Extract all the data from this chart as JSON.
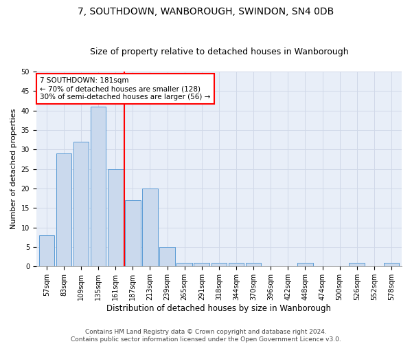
{
  "title": "7, SOUTHDOWN, WANBOROUGH, SWINDON, SN4 0DB",
  "subtitle": "Size of property relative to detached houses in Wanborough",
  "xlabel": "Distribution of detached houses by size in Wanborough",
  "ylabel": "Number of detached properties",
  "bin_labels": [
    "57sqm",
    "83sqm",
    "109sqm",
    "135sqm",
    "161sqm",
    "187sqm",
    "213sqm",
    "239sqm",
    "265sqm",
    "291sqm",
    "318sqm",
    "344sqm",
    "370sqm",
    "396sqm",
    "422sqm",
    "448sqm",
    "474sqm",
    "500sqm",
    "526sqm",
    "552sqm",
    "578sqm"
  ],
  "bar_values": [
    8,
    29,
    32,
    41,
    25,
    17,
    20,
    5,
    1,
    1,
    1,
    1,
    1,
    0,
    0,
    1,
    0,
    0,
    1,
    0,
    1
  ],
  "bar_color": "#cad9ed",
  "bar_edge_color": "#5b9bd5",
  "vline_pos": 4.5,
  "vline_color": "red",
  "annotation_text": "7 SOUTHDOWN: 181sqm\n← 70% of detached houses are smaller (128)\n30% of semi-detached houses are larger (56) →",
  "annotation_box_color": "white",
  "annotation_box_edge_color": "red",
  "ylim": [
    0,
    50
  ],
  "yticks": [
    0,
    5,
    10,
    15,
    20,
    25,
    30,
    35,
    40,
    45,
    50
  ],
  "grid_color": "#d0d8e8",
  "background_color": "#e8eef8",
  "footer_line1": "Contains HM Land Registry data © Crown copyright and database right 2024.",
  "footer_line2": "Contains public sector information licensed under the Open Government Licence v3.0.",
  "title_fontsize": 10,
  "subtitle_fontsize": 9,
  "xlabel_fontsize": 8.5,
  "ylabel_fontsize": 8,
  "tick_fontsize": 7,
  "footer_fontsize": 6.5,
  "annot_fontsize": 7.5
}
